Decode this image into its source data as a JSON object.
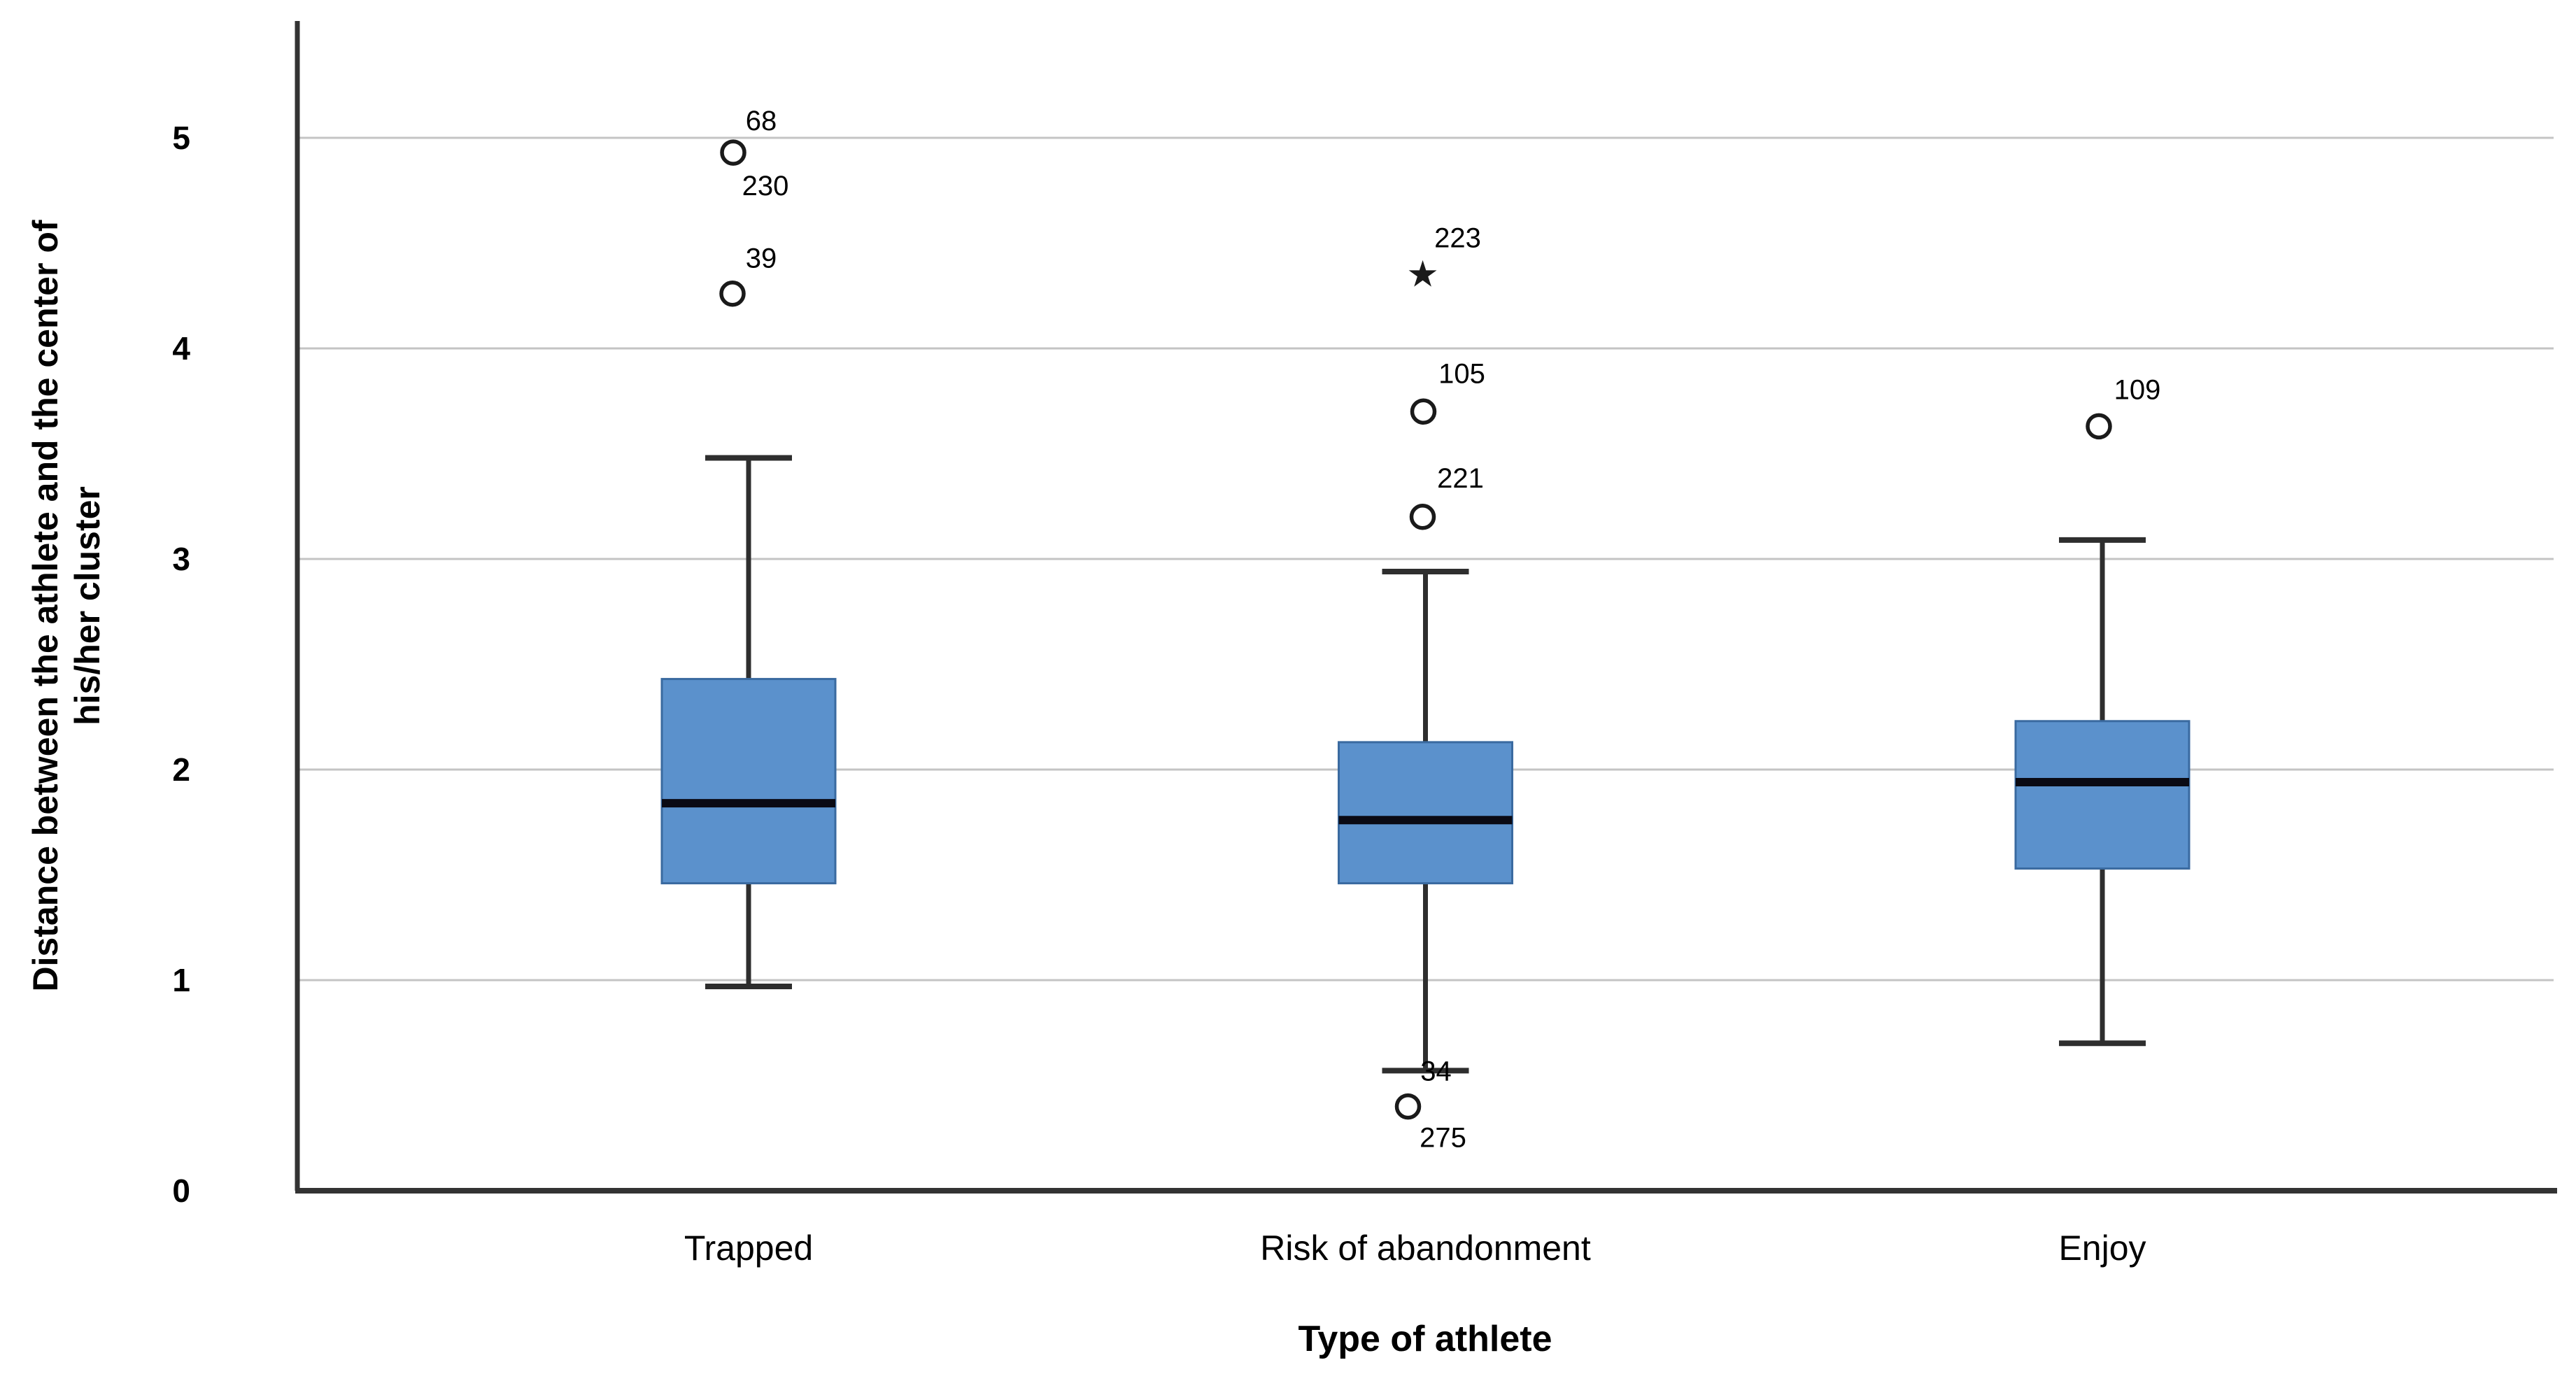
{
  "page": {
    "background": "#ffffff"
  },
  "chart_data": {
    "type": "boxplot",
    "title": "",
    "xlabel": "Type of athlete",
    "ylabel_lines": [
      "Distance between the athlete and the center of",
      "his/her cluster"
    ],
    "y_axis": {
      "min": 0,
      "max": 5.55,
      "ticks": [
        0,
        1,
        2,
        3,
        4,
        5
      ],
      "gridlines": [
        1,
        2,
        3,
        4,
        5
      ]
    },
    "categories": [
      "Trapped",
      "Risk of abandonment",
      "Enjoy"
    ],
    "series": [
      {
        "name": "Trapped",
        "center_frac": 0.2,
        "q1": 1.46,
        "median": 1.84,
        "q3": 2.43,
        "whisker_low": 0.97,
        "whisker_high": 3.48,
        "outliers": [
          {
            "value": 4.93,
            "marker": "circle",
            "dx": -22,
            "labels": [
              {
                "text": "68",
                "dx": 40,
                "dy": -45
              },
              {
                "text": "230",
                "dx": 46,
                "dy": 48
              }
            ]
          },
          {
            "value": 4.26,
            "marker": "circle",
            "dx": -23,
            "labels": [
              {
                "text": "39",
                "dx": 41,
                "dy": -50
              }
            ]
          }
        ]
      },
      {
        "name": "Risk of abandonment",
        "center_frac": 0.5,
        "q1": 1.46,
        "median": 1.76,
        "q3": 2.13,
        "whisker_low": 0.57,
        "whisker_high": 2.94,
        "outliers": [
          {
            "value": 4.35,
            "marker": "star",
            "dx": -4,
            "labels": [
              {
                "text": "223",
                "dx": 50,
                "dy": -52
              }
            ]
          },
          {
            "value": 3.7,
            "marker": "circle",
            "dx": -3,
            "labels": [
              {
                "text": "105",
                "dx": 55,
                "dy": -54
              }
            ]
          },
          {
            "value": 3.2,
            "marker": "circle",
            "dx": -4,
            "labels": [
              {
                "text": "221",
                "dx": 54,
                "dy": -55
              }
            ]
          },
          {
            "value": 0.4,
            "marker": "circle",
            "dx": -25,
            "labels": [
              {
                "text": "34",
                "dx": 40,
                "dy": -50
              },
              {
                "text": "275",
                "dx": 50,
                "dy": 45
              }
            ]
          }
        ]
      },
      {
        "name": "Enjoy",
        "center_frac": 0.8,
        "q1": 1.53,
        "median": 1.94,
        "q3": 2.23,
        "whisker_low": 0.7,
        "whisker_high": 3.09,
        "outliers": [
          {
            "value": 3.63,
            "marker": "circle",
            "dx": -5,
            "labels": [
              {
                "text": "109",
                "dx": 55,
                "dy": -52
              }
            ]
          }
        ]
      }
    ],
    "colors": {
      "box_fill": "#5B91CC",
      "box_border": "#3A6AA0",
      "median": "#0a0a14",
      "whisker": "#2e2e2e",
      "outlier_stroke": "#1a1a1a",
      "outlier_fill": "#ffffff",
      "gridline": "#c4c4c4",
      "axis": "#333333",
      "text": "#000000"
    },
    "layout_hints": {
      "grid": "horizontal",
      "legend": "none",
      "orientation": "vertical"
    }
  }
}
